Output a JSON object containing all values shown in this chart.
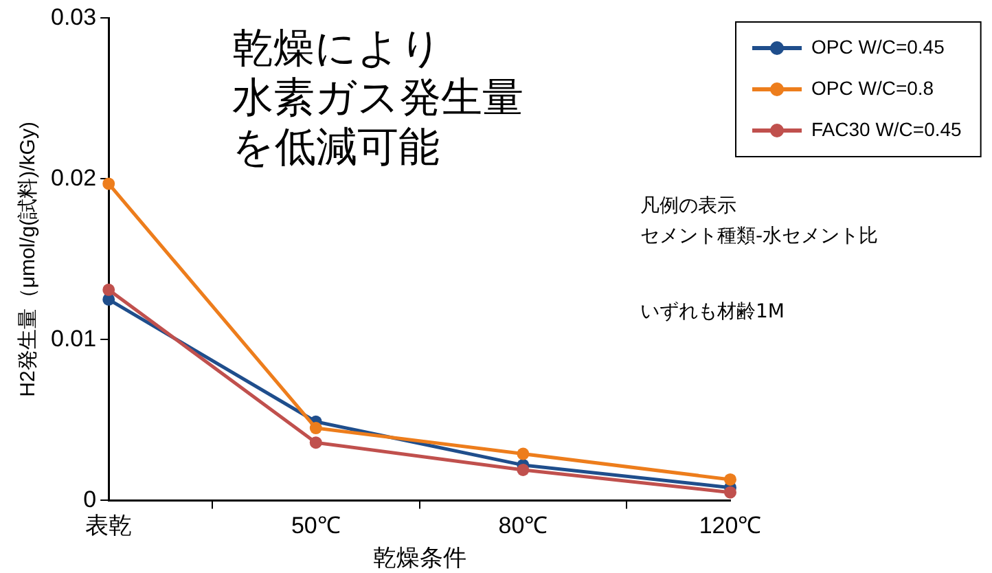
{
  "chart_data": {
    "type": "line",
    "ylabel": "H2発生量（μmol/g(試料)/kGy)",
    "xlabel": "乾燥条件",
    "categories": [
      "表乾",
      "50℃",
      "80℃",
      "120℃"
    ],
    "series": [
      {
        "name": "OPC W/C=0.45",
        "color": "#1f4e8c",
        "values": [
          0.0125,
          0.0049,
          0.0022,
          0.0008
        ]
      },
      {
        "name": "OPC W/C=0.8",
        "color": "#ed7d1c",
        "values": [
          0.0197,
          0.0045,
          0.0029,
          0.0013
        ]
      },
      {
        "name": "FAC30 W/C=0.45",
        "color": "#c0504d",
        "values": [
          0.0131,
          0.0036,
          0.0019,
          0.0005
        ]
      }
    ],
    "ylim": [
      0,
      0.03
    ],
    "yticks": [
      0,
      0.01,
      0.02,
      0.03
    ],
    "grid": false,
    "legend": "top right",
    "marker": "circle",
    "line_style": "solid",
    "annotations": [
      "乾燥により",
      "水素ガス発生量",
      "を低減可能",
      "凡例の表示",
      "セメント種類-水セメント比",
      "いずれも材齢1M"
    ]
  }
}
